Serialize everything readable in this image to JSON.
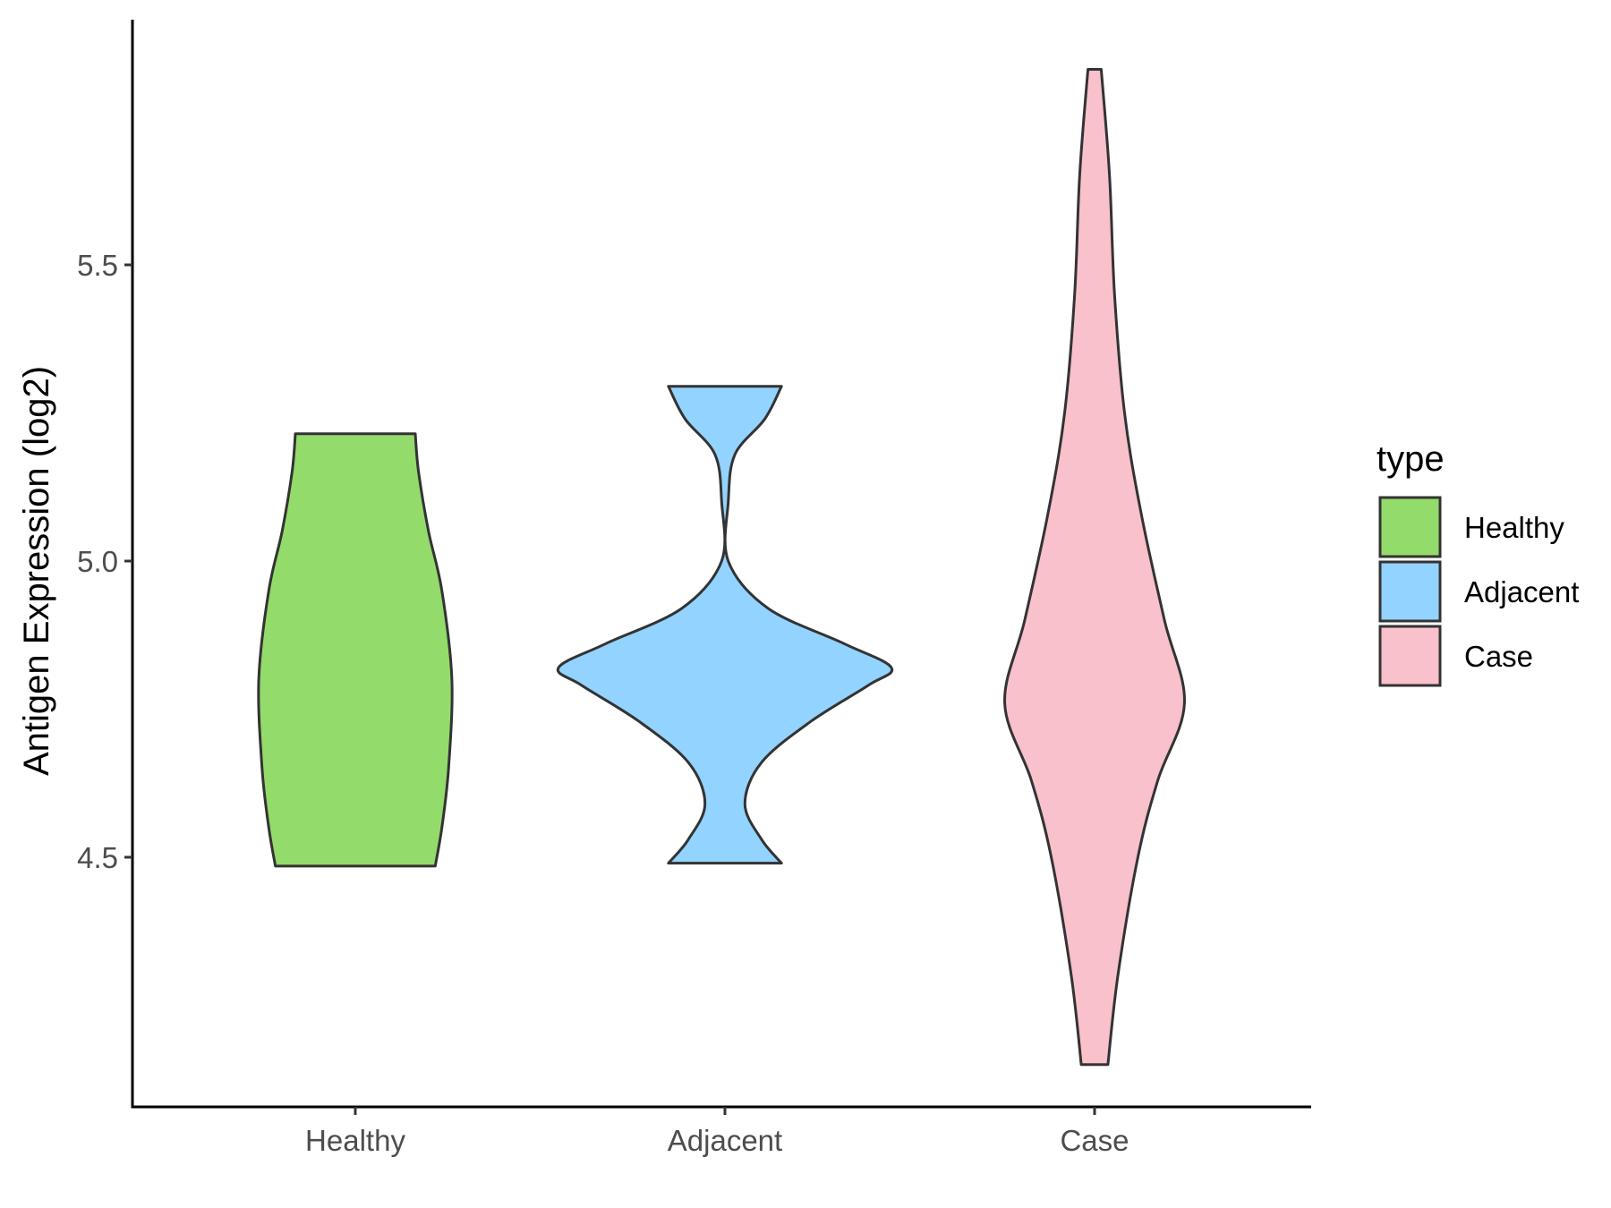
{
  "chart_data": {
    "type": "violin",
    "title": "",
    "xlabel": "",
    "ylabel": "Antigen Expression (log2)",
    "ylim": [
      4.07,
      5.92
    ],
    "y_ticks": [
      "4.5",
      "5.0",
      "5.5"
    ],
    "y_tick_values": [
      4.5,
      5.0,
      5.5
    ],
    "categories": [
      "Healthy",
      "Adjacent",
      "Case"
    ],
    "grid": false,
    "legend": {
      "title": "type",
      "placement": "right",
      "entries": [
        "Healthy",
        "Adjacent",
        "Case"
      ]
    },
    "colors": {
      "Healthy": "#93DB6A",
      "Adjacent": "#93D3FF",
      "Case": "#F8C1CC",
      "outline": "#333333"
    },
    "series": [
      {
        "category": "Healthy",
        "min": 4.485,
        "max": 5.215,
        "density_profile": [
          [
            4.485,
            0.48
          ],
          [
            4.55,
            0.52
          ],
          [
            4.65,
            0.56
          ],
          [
            4.8,
            0.58
          ],
          [
            4.95,
            0.52
          ],
          [
            5.05,
            0.44
          ],
          [
            5.15,
            0.38
          ],
          [
            5.215,
            0.36
          ]
        ]
      },
      {
        "category": "Adjacent",
        "min": 4.49,
        "max": 5.295,
        "density_profile": [
          [
            4.49,
            0.34
          ],
          [
            4.53,
            0.22
          ],
          [
            4.59,
            0.12
          ],
          [
            4.66,
            0.22
          ],
          [
            4.73,
            0.52
          ],
          [
            4.79,
            0.86
          ],
          [
            4.82,
            1.0
          ],
          [
            4.86,
            0.72
          ],
          [
            4.92,
            0.26
          ],
          [
            5.0,
            0.02
          ],
          [
            5.1,
            0.02
          ],
          [
            5.18,
            0.06
          ],
          [
            5.24,
            0.24
          ],
          [
            5.295,
            0.34
          ]
        ]
      },
      {
        "category": "Case",
        "min": 4.15,
        "max": 5.83,
        "density_profile": [
          [
            4.15,
            0.08
          ],
          [
            4.3,
            0.14
          ],
          [
            4.5,
            0.26
          ],
          [
            4.63,
            0.38
          ],
          [
            4.76,
            0.54
          ],
          [
            4.9,
            0.42
          ],
          [
            5.08,
            0.28
          ],
          [
            5.25,
            0.18
          ],
          [
            5.45,
            0.12
          ],
          [
            5.65,
            0.09
          ],
          [
            5.83,
            0.04
          ]
        ]
      }
    ]
  }
}
